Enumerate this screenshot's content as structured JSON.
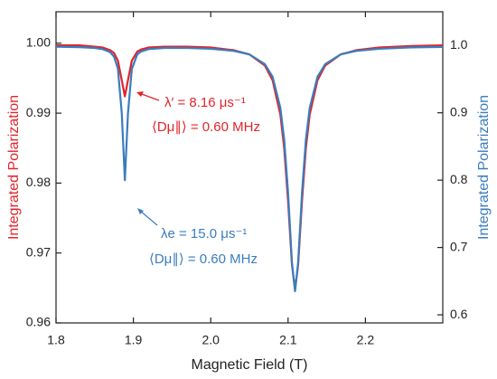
{
  "chart_data": {
    "type": "line",
    "x_label": "Magnetic Field (T)",
    "y_label": "Integrated Polarization",
    "y2_label": "Integrated Polarization",
    "x": [
      1.8,
      1.83,
      1.85,
      1.86,
      1.87,
      1.875,
      1.88,
      1.885,
      1.889,
      1.893,
      1.898,
      1.905,
      1.91,
      1.92,
      1.94,
      1.97,
      2.0,
      2.03,
      2.05,
      2.07,
      2.08,
      2.09,
      2.095,
      2.1,
      2.105,
      2.109,
      2.113,
      2.118,
      2.123,
      2.128,
      2.138,
      2.148,
      2.168,
      2.188,
      2.218,
      2.26,
      2.3
    ],
    "series": [
      {
        "name": "λ′",
        "color": "#e3242b",
        "axis": "y",
        "values": [
          0.9997,
          0.9997,
          0.9995,
          0.9994,
          0.999,
          0.9986,
          0.9975,
          0.9947,
          0.9924,
          0.9947,
          0.9975,
          0.9988,
          0.9991,
          0.9994,
          0.9995,
          0.9995,
          0.9994,
          0.999,
          0.9984,
          0.9968,
          0.9947,
          0.9898,
          0.985,
          0.9774,
          0.9683,
          0.9648,
          0.9683,
          0.9774,
          0.985,
          0.9898,
          0.9947,
          0.9968,
          0.9984,
          0.999,
          0.9994,
          0.9996,
          0.9997
        ]
      },
      {
        "name": "λe",
        "color": "#3a7dbd",
        "axis": "y2",
        "values": [
          0.9981,
          0.9975,
          0.9963,
          0.9946,
          0.9899,
          0.9833,
          0.9655,
          0.8993,
          0.8,
          0.899,
          0.965,
          0.9866,
          0.991,
          0.9946,
          0.9963,
          0.9962,
          0.995,
          0.9919,
          0.9867,
          0.9722,
          0.9533,
          0.9075,
          0.86,
          0.781,
          0.6775,
          0.635,
          0.6775,
          0.781,
          0.86,
          0.9075,
          0.9533,
          0.9722,
          0.9867,
          0.9919,
          0.995,
          0.9971,
          0.9978
        ]
      }
    ],
    "annotations": [
      "λ′ = 8.16 μs⁻¹",
      "⟨Dμ∥⟩ = 0.60 MHz",
      "λe = 15.0 μs⁻¹",
      "⟨Dμ∥⟩ = 0.60 MHz"
    ],
    "xlim": [
      1.8,
      2.3
    ],
    "xticks": [
      1.8,
      1.9,
      {
        "value": 2.0,
        "label": "2.0"
      },
      2.1,
      2.2
    ],
    "ylim": [
      0.96,
      1.0045
    ],
    "yticks": [
      0.96,
      0.97,
      0.98,
      0.99,
      {
        "value": 1.0,
        "label": "1.00"
      }
    ],
    "y2lim": [
      0.588,
      1.05
    ],
    "y2ticks": [
      0.6,
      0.7,
      0.8,
      0.9,
      {
        "value": 1.0,
        "label": "1.0"
      }
    ]
  }
}
